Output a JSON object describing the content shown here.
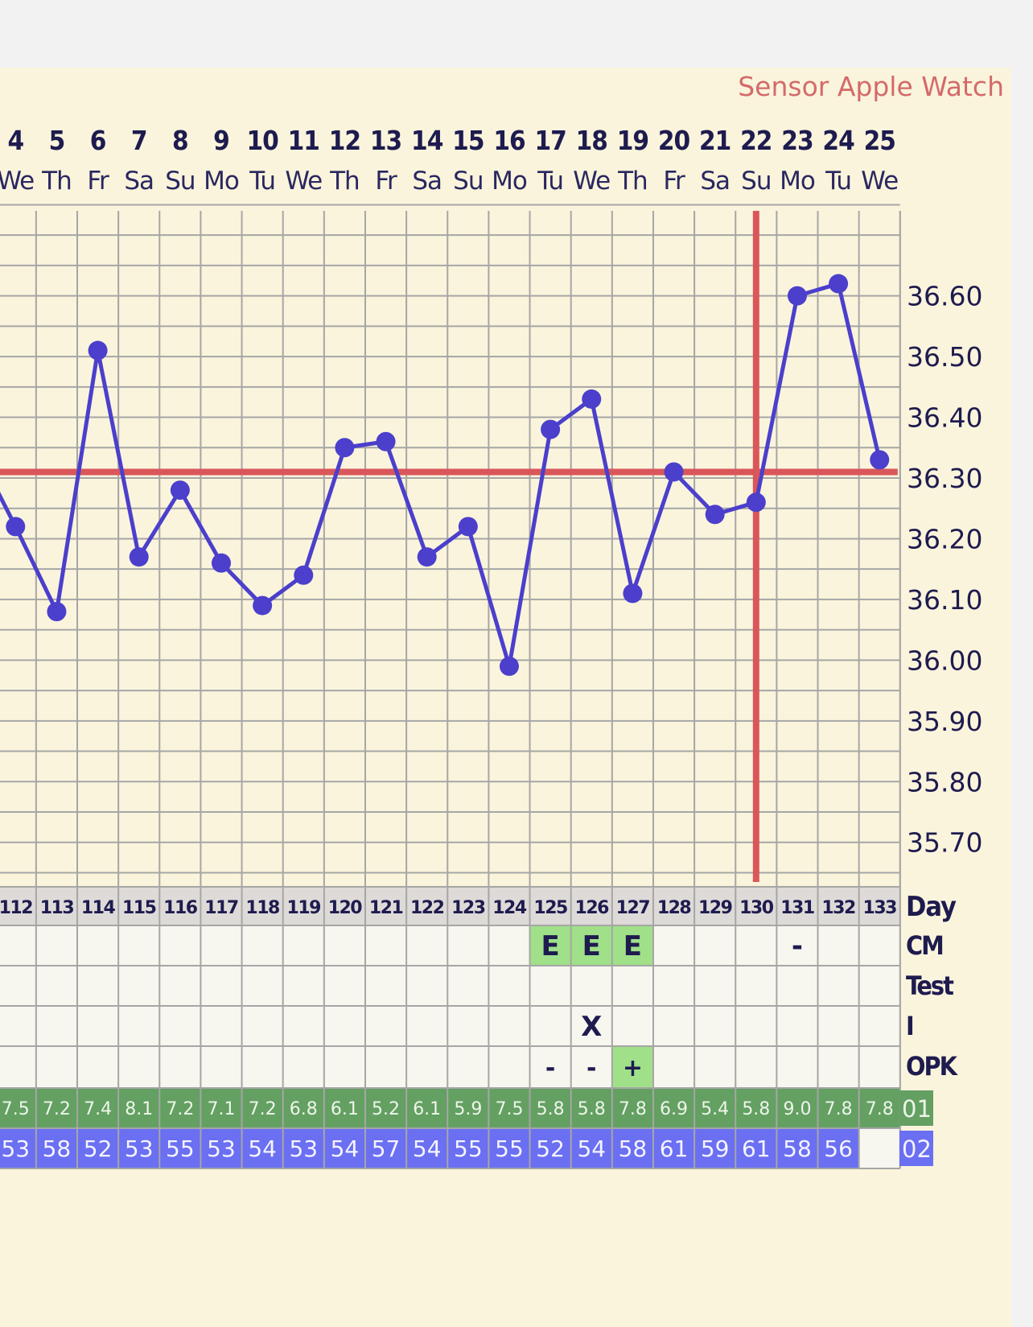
{
  "header": {
    "sensor_label": "Sensor Apple Watch"
  },
  "chart_data": {
    "type": "line",
    "x_dates": [
      "4",
      "5",
      "6",
      "7",
      "8",
      "9",
      "10",
      "11",
      "12",
      "13",
      "14",
      "15",
      "16",
      "17",
      "18",
      "19",
      "20",
      "21",
      "22",
      "23",
      "24",
      "25"
    ],
    "x_weekdays": [
      "We",
      "Th",
      "Fr",
      "Sa",
      "Su",
      "Mo",
      "Tu",
      "We",
      "Th",
      "Fr",
      "Sa",
      "Su",
      "Mo",
      "Tu",
      "We",
      "Th",
      "Fr",
      "Sa",
      "Su",
      "Mo",
      "Tu",
      "We"
    ],
    "cycle_days": [
      "112",
      "113",
      "114",
      "115",
      "116",
      "117",
      "118",
      "119",
      "120",
      "121",
      "122",
      "123",
      "124",
      "125",
      "126",
      "127",
      "128",
      "129",
      "130",
      "131",
      "132",
      "133"
    ],
    "temperatures": [
      36.22,
      36.08,
      36.51,
      36.17,
      36.28,
      36.16,
      36.09,
      36.14,
      36.35,
      36.36,
      36.17,
      36.22,
      35.99,
      36.38,
      36.43,
      36.11,
      36.31,
      36.24,
      36.26,
      36.6,
      36.62,
      36.33
    ],
    "temperature_before_first_day": 36.35,
    "y_ticks": [
      "36.60",
      "36.50",
      "36.40",
      "36.30",
      "36.20",
      "36.10",
      "36.00",
      "35.90",
      "35.80",
      "35.70"
    ],
    "ylim": [
      35.64,
      36.74
    ],
    "coverline": 36.31,
    "ovulation_day": "130",
    "row_labels": {
      "day": "Day",
      "cm": "CM",
      "test": "Test",
      "i": "I",
      "opk": "OPK",
      "o1": "01",
      "o2": "02"
    },
    "cm_row": [
      "",
      "",
      "",
      "",
      "",
      "",
      "",
      "",
      "",
      "",
      "",
      "",
      "",
      "E",
      "E",
      "E",
      "",
      "",
      "",
      "-",
      "",
      ""
    ],
    "test_row": [
      "",
      "",
      "",
      "",
      "",
      "",
      "",
      "",
      "",
      "",
      "",
      "",
      "",
      "",
      "",
      "",
      "",
      "",
      "",
      "",
      "",
      ""
    ],
    "i_row": [
      "",
      "",
      "",
      "",
      "",
      "",
      "",
      "",
      "",
      "",
      "",
      "",
      "",
      "",
      "X",
      "",
      "",
      "",
      "",
      "",
      "",
      ""
    ],
    "opk_row": [
      "",
      "",
      "",
      "",
      "",
      "",
      "",
      "",
      "",
      "",
      "",
      "",
      "",
      "-",
      "-",
      "+",
      "",
      "",
      "",
      "",
      "",
      ""
    ],
    "o1_row": [
      "7.5",
      "7.2",
      "7.4",
      "8.1",
      "7.2",
      "7.1",
      "7.2",
      "6.8",
      "6.1",
      "5.2",
      "6.1",
      "5.9",
      "7.5",
      "5.8",
      "5.8",
      "7.8",
      "6.9",
      "5.4",
      "5.8",
      "9.0",
      "7.8",
      "7.8"
    ],
    "o2_row": [
      "53",
      "58",
      "52",
      "53",
      "55",
      "53",
      "54",
      "53",
      "54",
      "57",
      "54",
      "55",
      "55",
      "52",
      "54",
      "58",
      "61",
      "59",
      "61",
      "58",
      "56",
      ""
    ],
    "colors": {
      "line": "#4b3fcc",
      "coverline": "#d9575a",
      "grid": "#a6a6a6",
      "highlight_green": "#9fe089",
      "o1_green": "#63a062",
      "o2_blue": "#6b6ff2",
      "header_text": "#1e1b4f"
    }
  }
}
